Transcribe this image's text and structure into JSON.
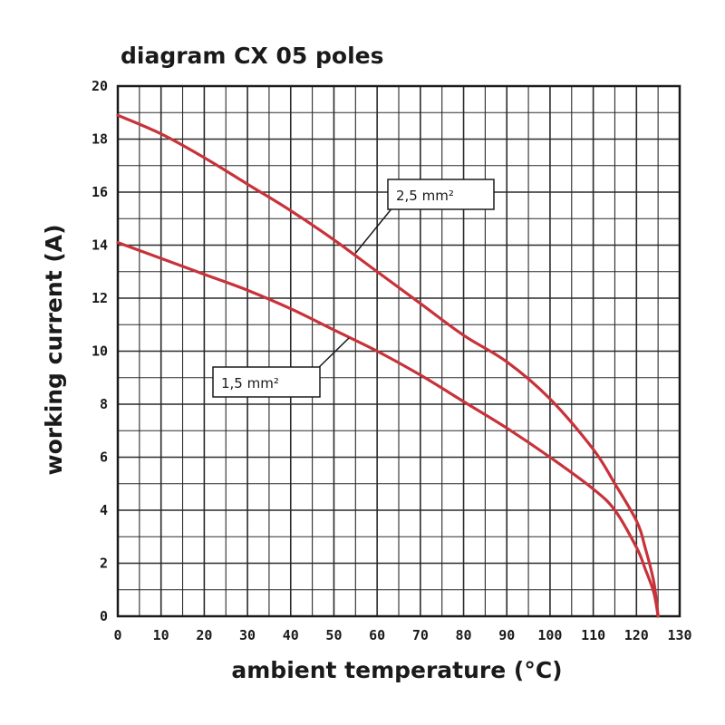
{
  "chart_data": {
    "type": "line",
    "title": "diagram CX 05 poles",
    "xlabel": "ambient temperature (°C)",
    "ylabel": "working current (A)",
    "xlim": [
      0,
      130
    ],
    "ylim": [
      0,
      20
    ],
    "x_ticks": [
      0,
      10,
      20,
      30,
      40,
      50,
      60,
      70,
      80,
      90,
      100,
      110,
      120,
      130
    ],
    "x_tick_labels": [
      "0",
      "10",
      "20",
      "30",
      "40",
      "50",
      "60",
      "70",
      "80",
      "90",
      "100",
      "110",
      "120",
      "130"
    ],
    "y_ticks": [
      0,
      2,
      4,
      6,
      8,
      10,
      12,
      14,
      16,
      18,
      20
    ],
    "y_tick_labels": [
      "0",
      "2",
      "4",
      "6",
      "8",
      "10",
      "12",
      "14",
      "16",
      "18",
      "20"
    ],
    "grid": true,
    "series": [
      {
        "name": "2,5 mm²",
        "color": "#c8323a",
        "x": [
          0,
          10,
          20,
          30,
          40,
          50,
          60,
          70,
          80,
          90,
          100,
          110,
          115,
          120,
          122,
          124,
          125
        ],
        "y": [
          18.9,
          18.2,
          17.3,
          16.3,
          15.3,
          14.2,
          13.0,
          11.8,
          10.6,
          9.6,
          8.2,
          6.3,
          5.0,
          3.6,
          2.6,
          1.3,
          0
        ]
      },
      {
        "name": "1,5 mm²",
        "color": "#c8323a",
        "x": [
          0,
          10,
          20,
          30,
          40,
          50,
          60,
          70,
          80,
          90,
          100,
          110,
          115,
          120,
          122,
          124,
          125
        ],
        "y": [
          14.1,
          13.5,
          12.9,
          12.3,
          11.6,
          10.8,
          10.0,
          9.1,
          8.1,
          7.1,
          6.0,
          4.8,
          4.0,
          2.6,
          1.8,
          0.9,
          0
        ]
      }
    ],
    "annotations": [
      {
        "text": "2,5 mm²",
        "series": 0
      },
      {
        "text": "1,5 mm²",
        "series": 1
      }
    ]
  }
}
